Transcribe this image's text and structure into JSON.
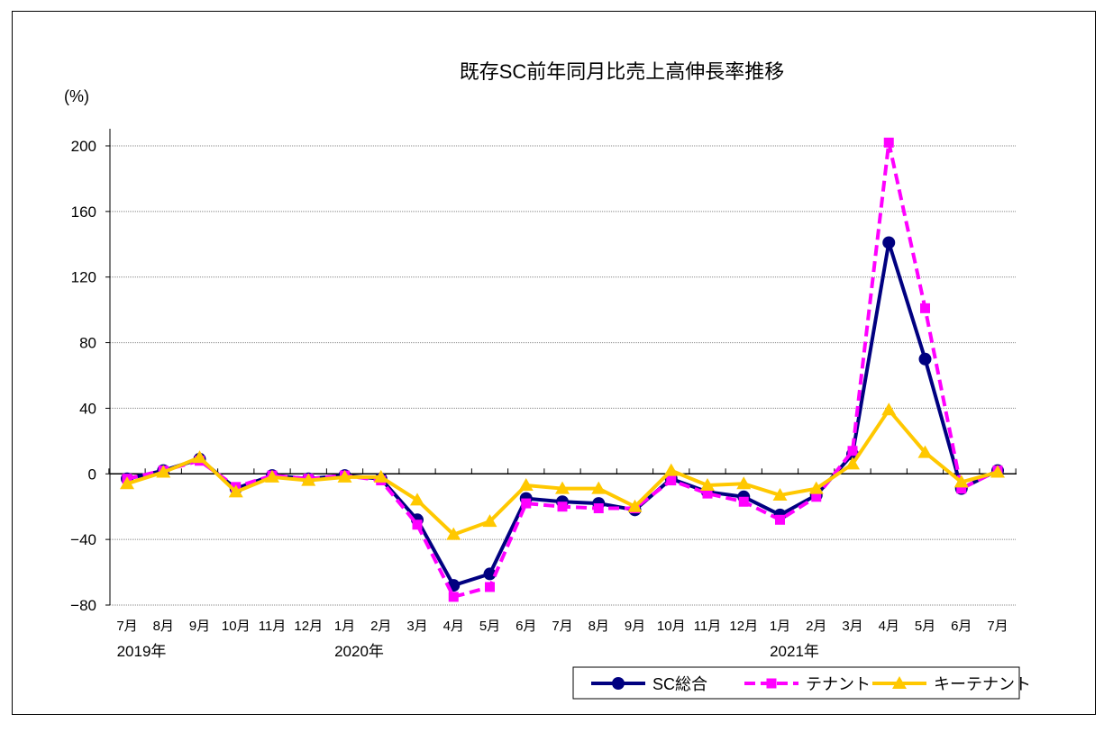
{
  "chart_data": {
    "type": "line",
    "title": "既存SC前年同月比売上高伸長率推移",
    "ylabel": "(%)",
    "ylim": [
      -80,
      200
    ],
    "yticks": [
      -80,
      -40,
      0,
      40,
      80,
      120,
      160,
      200
    ],
    "ytick_labels": [
      "−80",
      "−40",
      "0",
      "40",
      "80",
      "120",
      "160",
      "200"
    ],
    "grid": true,
    "legend_position": "bottom-right",
    "categories": [
      "7月",
      "8月",
      "9月",
      "10月",
      "11月",
      "12月",
      "1月",
      "2月",
      "3月",
      "4月",
      "5月",
      "6月",
      "7月",
      "8月",
      "9月",
      "10月",
      "11月",
      "12月",
      "1月",
      "2月",
      "3月",
      "4月",
      "5月",
      "6月",
      "7月"
    ],
    "year_labels": [
      {
        "index": 0,
        "label": "2019年"
      },
      {
        "index": 6,
        "label": "2020年"
      },
      {
        "index": 18,
        "label": "2021年"
      }
    ],
    "series": [
      {
        "name": "SC総合",
        "color": "#000080",
        "marker": "circle",
        "dash": false,
        "values": [
          -3,
          2,
          9,
          -9,
          -1,
          -3,
          -1,
          -3,
          -28,
          -68,
          -61,
          -15,
          -17,
          -18,
          -22,
          -3,
          -11,
          -14,
          -25,
          -13,
          12,
          141,
          70,
          -9,
          2
        ]
      },
      {
        "name": "テナント",
        "color": "#ff00ff",
        "marker": "square",
        "dash": true,
        "values": [
          -3,
          2,
          8,
          -8,
          -1,
          -3,
          -1,
          -4,
          -31,
          -75,
          -69,
          -18,
          -20,
          -21,
          -21,
          -4,
          -12,
          -17,
          -28,
          -14,
          14,
          202,
          101,
          -9,
          2
        ]
      },
      {
        "name": "キーテナント",
        "color": "#ffc800",
        "marker": "triangle",
        "dash": false,
        "values": [
          -6,
          1,
          10,
          -11,
          -2,
          -4,
          -2,
          -2,
          -16,
          -37,
          -29,
          -7,
          -9,
          -9,
          -20,
          2,
          -7,
          -6,
          -13,
          -9,
          6,
          39,
          13,
          -5,
          1
        ]
      }
    ]
  }
}
